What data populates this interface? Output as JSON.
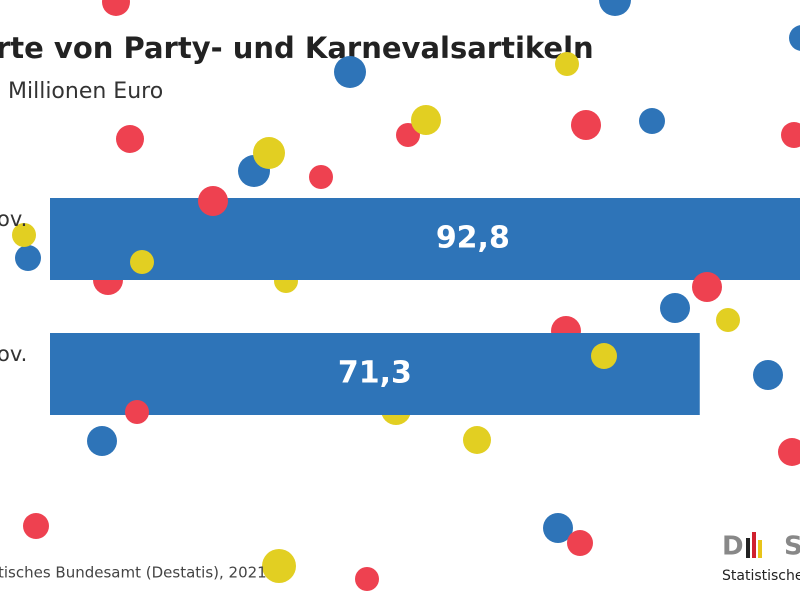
{
  "chart_data": {
    "type": "bar",
    "orientation": "horizontal",
    "title": "rte von Party- und Karnevalsartikeln",
    "subtitle": "Millionen Euro",
    "categories": [
      "ov.",
      "ov."
    ],
    "values": [
      92.8,
      71.3
    ],
    "value_labels": [
      "92,8",
      "71,3"
    ],
    "color": "#2e74b8",
    "xlim": [
      0,
      82.3
    ],
    "source": "tisches Bundesamt (Destatis), 2021",
    "logo": {
      "mark": "D",
      "text": "Statistische"
    }
  }
}
